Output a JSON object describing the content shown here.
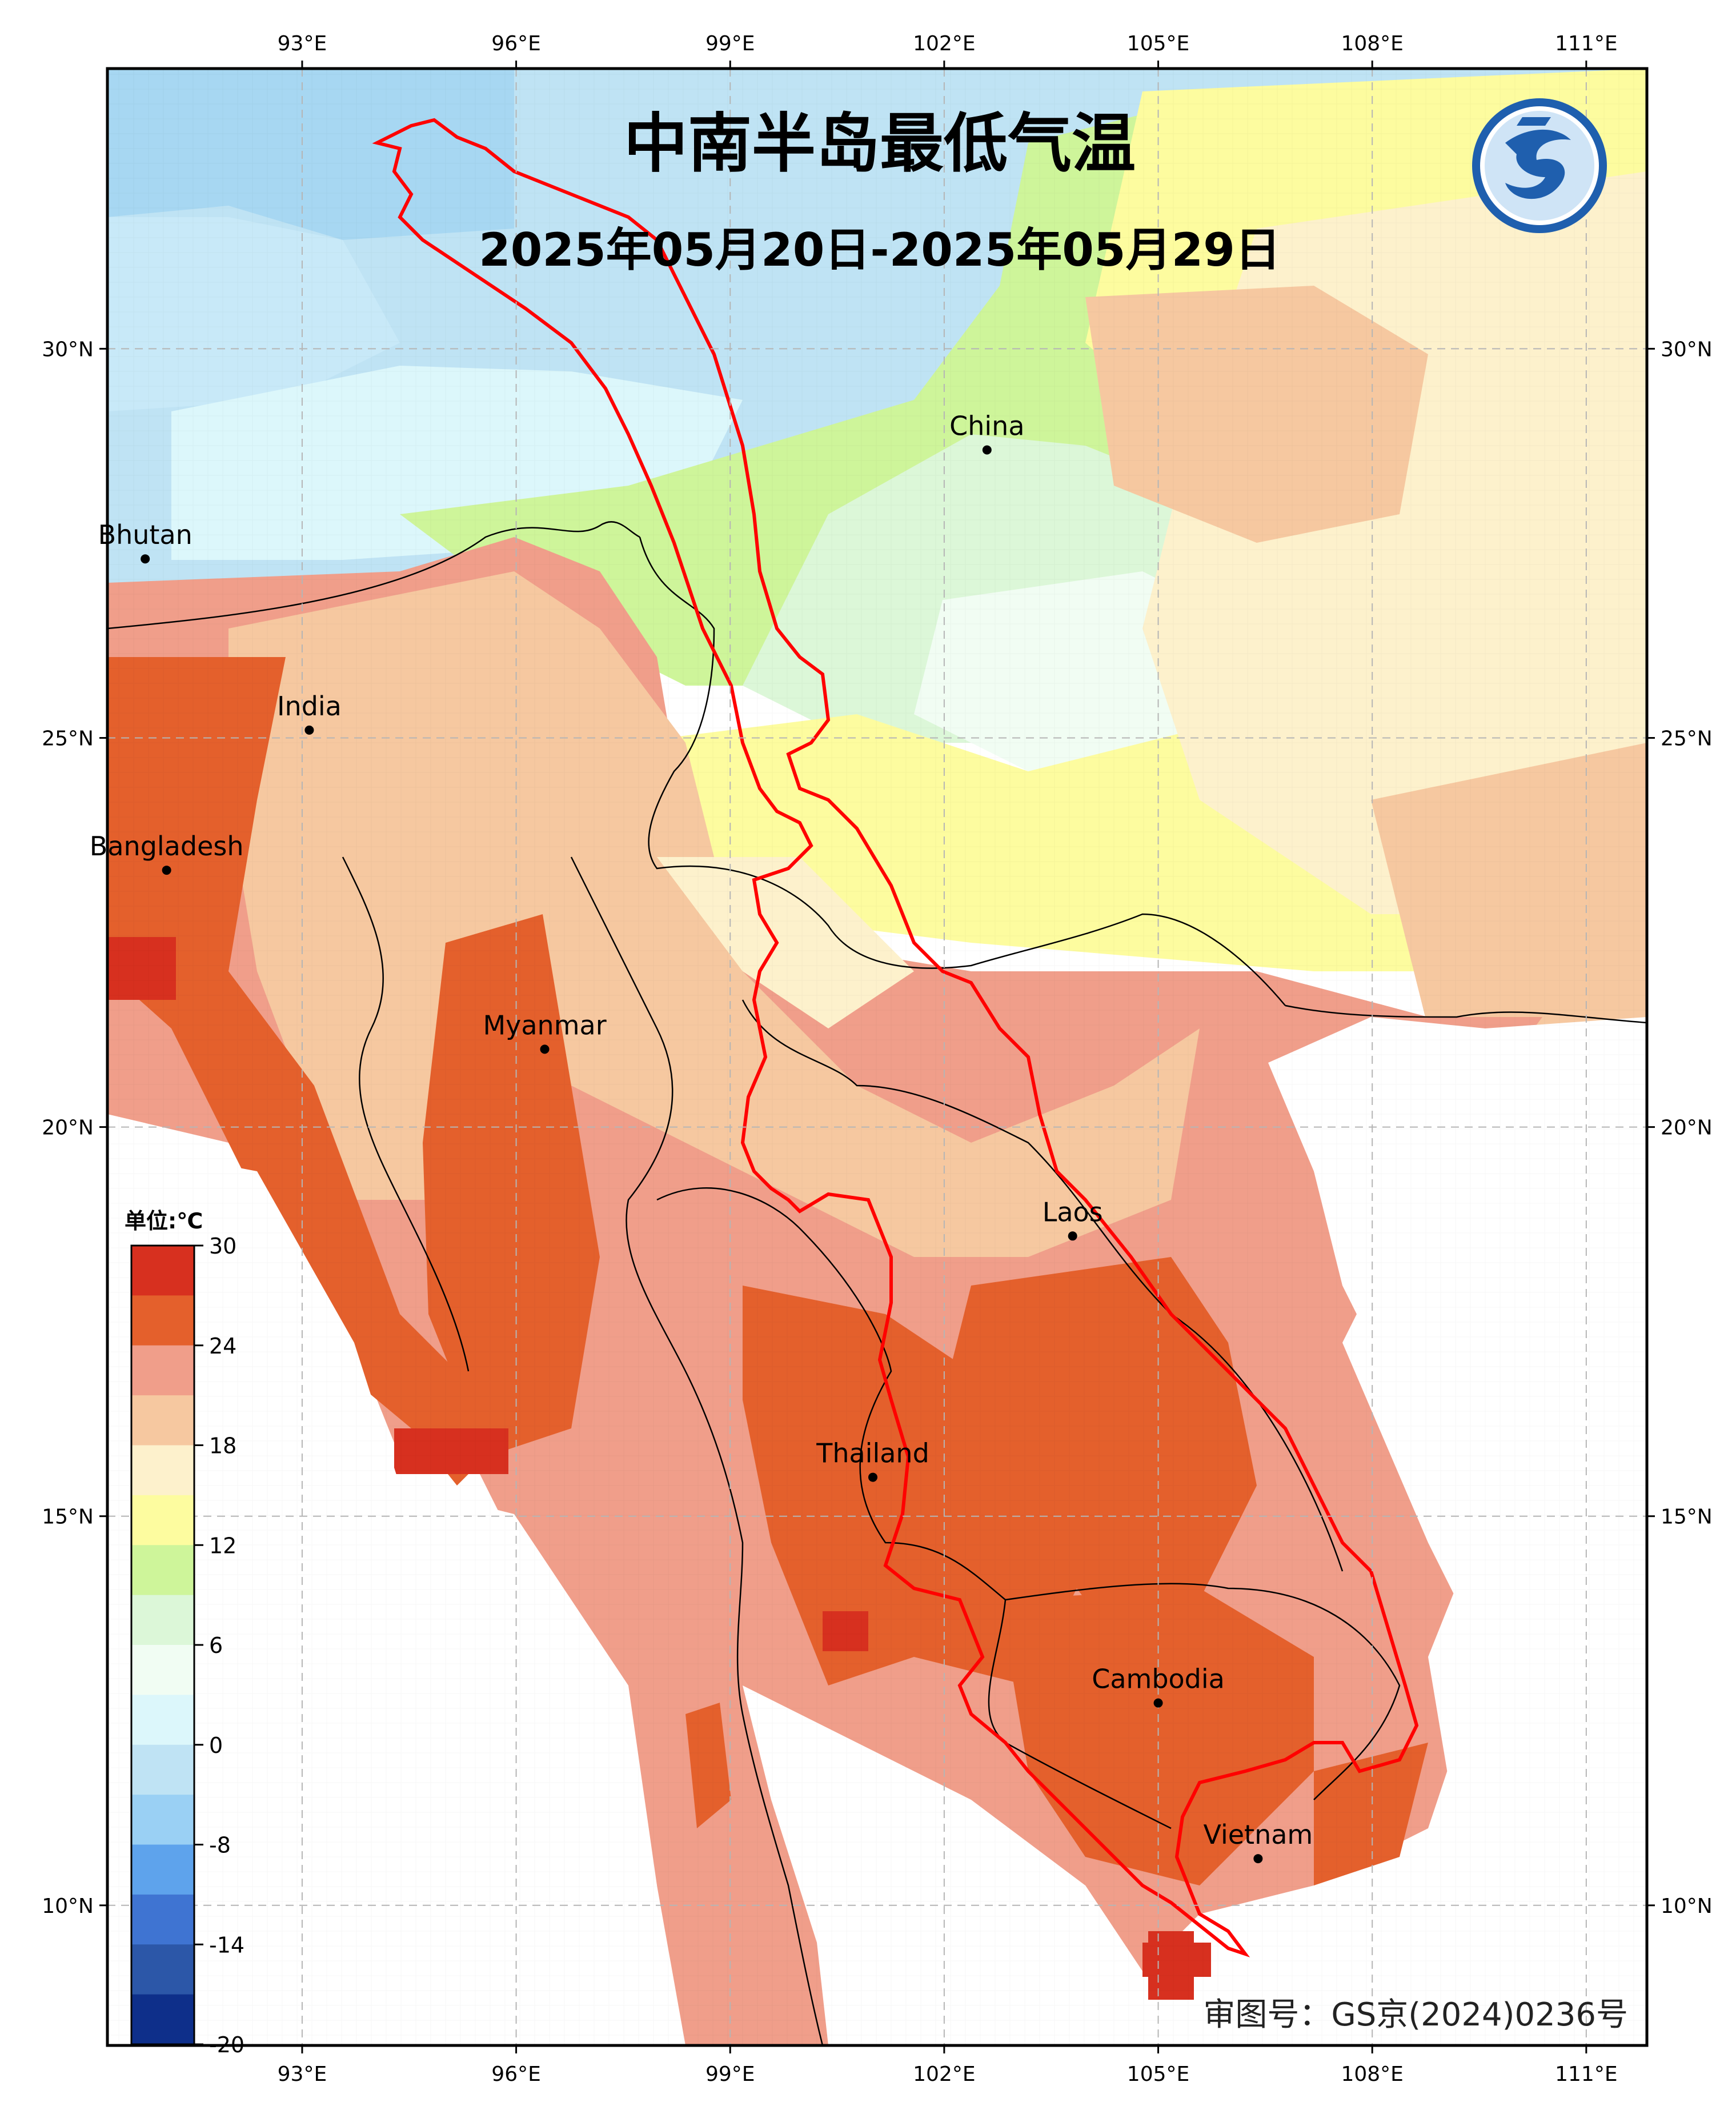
{
  "map": {
    "title": "中南半岛最低气温",
    "subtitle": "2025年05月20日-2025年05月29日",
    "approval_number": "审图号：GS京(2024)0236号",
    "logo_icon": "dragon-logo-icon",
    "lon_ticks": [
      "93°E",
      "96°E",
      "99°E",
      "102°E",
      "105°E",
      "108°E",
      "111°E"
    ],
    "lat_ticks": [
      "30°N",
      "25°N",
      "20°N",
      "15°N",
      "10°N"
    ],
    "grid": true,
    "basin_outline_color": "#ff0000",
    "places": [
      {
        "name": "China",
        "lon": 102.6,
        "lat": 28.7
      },
      {
        "name": "Bhutan",
        "lon": 90.8,
        "lat": 27.3
      },
      {
        "name": "India",
        "lon": 93.1,
        "lat": 25.1
      },
      {
        "name": "Bangladesh",
        "lon": 91.1,
        "lat": 23.3
      },
      {
        "name": "Myanmar",
        "lon": 96.4,
        "lat": 21.0
      },
      {
        "name": "Laos",
        "lon": 103.8,
        "lat": 18.6
      },
      {
        "name": "Thailand",
        "lon": 101.0,
        "lat": 15.5
      },
      {
        "name": "Cambodia",
        "lon": 105.0,
        "lat": 12.6
      },
      {
        "name": "Vietnam",
        "lon": 106.4,
        "lat": 10.6
      }
    ]
  },
  "colorbar": {
    "unit": "单位:℃",
    "labels": [
      "30",
      "24",
      "18",
      "12",
      "6",
      "0",
      "-8",
      "-14",
      "-20"
    ],
    "colors": [
      "#d7301f",
      "#e4602c",
      "#f09e8a",
      "#f6c8a0",
      "#fdf1cc",
      "#fdfc9f",
      "#cef59a",
      "#dcf7d8",
      "#f1fdf3",
      "#dcf7fb",
      "#bfe3f4",
      "#9ad0f4",
      "#5ea3ec",
      "#3f74d2",
      "#2c57a8",
      "#0e2f8a"
    ]
  }
}
